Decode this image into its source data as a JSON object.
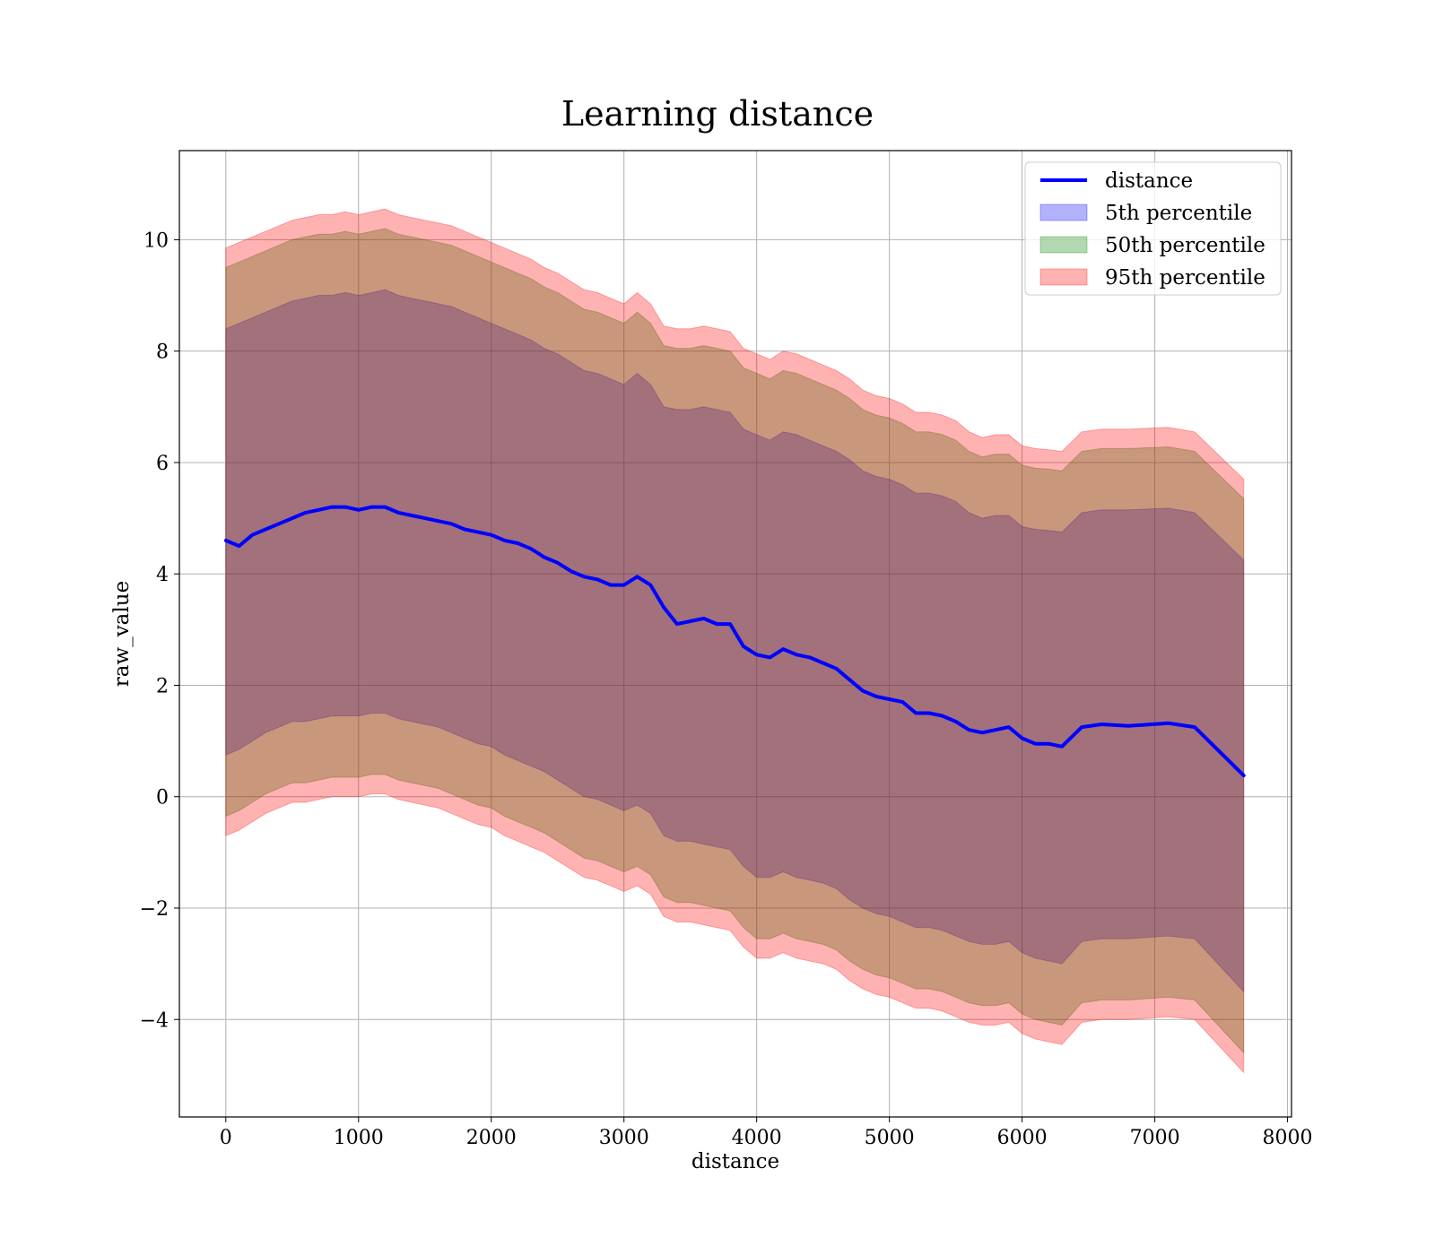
{
  "chart_data": {
    "type": "area",
    "title": "Learning distance",
    "xlabel": "distance",
    "ylabel": "raw_value",
    "xlim": [
      -350,
      8030
    ],
    "ylim": [
      -5.75,
      11.6
    ],
    "xticks": [
      0,
      1000,
      2000,
      3000,
      4000,
      5000,
      6000,
      7000,
      8000
    ],
    "xtick_labels": [
      "0",
      "1000",
      "2000",
      "3000",
      "4000",
      "5000",
      "6000",
      "7000",
      "8000"
    ],
    "yticks": [
      -4,
      -2,
      0,
      2,
      4,
      6,
      8,
      10
    ],
    "ytick_labels": [
      "−4",
      "−2",
      "0",
      "2",
      "4",
      "6",
      "8",
      "10"
    ],
    "grid": true,
    "legend_position": "top-right",
    "x": [
      0,
      100,
      200,
      300,
      400,
      500,
      600,
      700,
      800,
      900,
      1000,
      1100,
      1200,
      1300,
      1400,
      1500,
      1600,
      1700,
      1800,
      1900,
      2000,
      2100,
      2200,
      2300,
      2400,
      2500,
      2600,
      2700,
      2800,
      2900,
      3000,
      3100,
      3200,
      3300,
      3400,
      3500,
      3600,
      3700,
      3800,
      3900,
      4000,
      4100,
      4200,
      4300,
      4400,
      4500,
      4600,
      4700,
      4800,
      4900,
      5000,
      5100,
      5200,
      5300,
      5400,
      5500,
      5600,
      5700,
      5800,
      5900,
      6000,
      6100,
      6200,
      6300,
      6450,
      6600,
      6800,
      7100,
      7300,
      7670
    ],
    "series": [
      {
        "name": "distance",
        "kind": "line",
        "color": "#0000ff",
        "values": [
          4.6,
          4.5,
          4.7,
          4.8,
          4.9,
          5.0,
          5.1,
          5.15,
          5.2,
          5.2,
          5.15,
          5.2,
          5.2,
          5.1,
          5.05,
          5.0,
          4.95,
          4.9,
          4.8,
          4.75,
          4.7,
          4.6,
          4.55,
          4.45,
          4.3,
          4.2,
          4.05,
          3.95,
          3.9,
          3.8,
          3.8,
          3.95,
          3.8,
          3.4,
          3.1,
          3.15,
          3.2,
          3.1,
          3.1,
          2.7,
          2.55,
          2.5,
          2.65,
          2.55,
          2.5,
          2.4,
          2.3,
          2.1,
          1.9,
          1.8,
          1.75,
          1.7,
          1.5,
          1.5,
          1.45,
          1.35,
          1.2,
          1.15,
          1.2,
          1.25,
          1.05,
          0.95,
          0.95,
          0.9,
          1.25,
          1.3,
          1.27,
          1.32,
          1.25,
          0.38
        ]
      },
      {
        "name": "5th percentile",
        "kind": "band",
        "color": "#0000ff",
        "opacity": 0.3,
        "lower": [
          0.75,
          0.85,
          1.0,
          1.15,
          1.25,
          1.35,
          1.35,
          1.4,
          1.45,
          1.45,
          1.45,
          1.5,
          1.5,
          1.4,
          1.35,
          1.3,
          1.25,
          1.15,
          1.05,
          0.95,
          0.9,
          0.75,
          0.65,
          0.55,
          0.45,
          0.3,
          0.15,
          0.0,
          -0.05,
          -0.15,
          -0.25,
          -0.15,
          -0.3,
          -0.7,
          -0.8,
          -0.8,
          -0.85,
          -0.9,
          -0.95,
          -1.25,
          -1.45,
          -1.45,
          -1.35,
          -1.45,
          -1.5,
          -1.55,
          -1.65,
          -1.85,
          -2.0,
          -2.1,
          -2.15,
          -2.25,
          -2.35,
          -2.35,
          -2.4,
          -2.5,
          -2.6,
          -2.65,
          -2.65,
          -2.6,
          -2.8,
          -2.9,
          -2.95,
          -3.0,
          -2.6,
          -2.55,
          -2.55,
          -2.5,
          -2.55,
          -3.5
        ],
        "upper": [
          8.4,
          8.5,
          8.6,
          8.7,
          8.8,
          8.9,
          8.95,
          9.0,
          9.0,
          9.05,
          9.0,
          9.05,
          9.1,
          9.0,
          8.95,
          8.9,
          8.85,
          8.8,
          8.7,
          8.6,
          8.5,
          8.4,
          8.3,
          8.2,
          8.05,
          7.95,
          7.8,
          7.65,
          7.6,
          7.5,
          7.4,
          7.6,
          7.4,
          7.0,
          6.95,
          6.95,
          7.0,
          6.95,
          6.9,
          6.6,
          6.5,
          6.4,
          6.55,
          6.5,
          6.4,
          6.3,
          6.2,
          6.05,
          5.85,
          5.75,
          5.7,
          5.6,
          5.45,
          5.45,
          5.4,
          5.3,
          5.1,
          5.0,
          5.05,
          5.05,
          4.85,
          4.8,
          4.78,
          4.75,
          5.1,
          5.15,
          5.15,
          5.18,
          5.1,
          4.25
        ]
      },
      {
        "name": "50th percentile",
        "kind": "band",
        "color": "#008000",
        "opacity": 0.3,
        "lower": [
          -0.35,
          -0.25,
          -0.1,
          0.05,
          0.15,
          0.25,
          0.25,
          0.3,
          0.35,
          0.35,
          0.35,
          0.4,
          0.4,
          0.3,
          0.25,
          0.2,
          0.15,
          0.05,
          -0.05,
          -0.15,
          -0.2,
          -0.35,
          -0.45,
          -0.55,
          -0.65,
          -0.8,
          -0.95,
          -1.1,
          -1.15,
          -1.25,
          -1.35,
          -1.25,
          -1.4,
          -1.8,
          -1.9,
          -1.9,
          -1.95,
          -2.0,
          -2.05,
          -2.35,
          -2.55,
          -2.55,
          -2.45,
          -2.55,
          -2.6,
          -2.65,
          -2.75,
          -2.95,
          -3.1,
          -3.2,
          -3.25,
          -3.35,
          -3.45,
          -3.45,
          -3.5,
          -3.6,
          -3.7,
          -3.75,
          -3.75,
          -3.7,
          -3.9,
          -4.0,
          -4.05,
          -4.1,
          -3.7,
          -3.65,
          -3.65,
          -3.6,
          -3.65,
          -4.6
        ],
        "upper": [
          9.5,
          9.6,
          9.7,
          9.8,
          9.9,
          10.0,
          10.05,
          10.1,
          10.1,
          10.15,
          10.1,
          10.15,
          10.2,
          10.1,
          10.05,
          10.0,
          9.95,
          9.9,
          9.8,
          9.7,
          9.6,
          9.5,
          9.4,
          9.3,
          9.15,
          9.05,
          8.9,
          8.75,
          8.7,
          8.6,
          8.5,
          8.7,
          8.5,
          8.1,
          8.05,
          8.05,
          8.1,
          8.05,
          8.0,
          7.7,
          7.6,
          7.5,
          7.65,
          7.6,
          7.5,
          7.4,
          7.3,
          7.15,
          6.95,
          6.85,
          6.8,
          6.7,
          6.55,
          6.55,
          6.5,
          6.4,
          6.2,
          6.1,
          6.15,
          6.15,
          5.95,
          5.9,
          5.88,
          5.85,
          6.2,
          6.25,
          6.25,
          6.28,
          6.2,
          5.35
        ]
      },
      {
        "name": "95th percentile",
        "kind": "band",
        "color": "#ff0000",
        "opacity": 0.3,
        "lower": [
          -0.7,
          -0.6,
          -0.45,
          -0.3,
          -0.2,
          -0.1,
          -0.1,
          -0.05,
          0.0,
          0.0,
          0.0,
          0.05,
          0.05,
          -0.05,
          -0.1,
          -0.15,
          -0.2,
          -0.3,
          -0.4,
          -0.5,
          -0.55,
          -0.7,
          -0.8,
          -0.9,
          -1.0,
          -1.15,
          -1.3,
          -1.45,
          -1.5,
          -1.6,
          -1.7,
          -1.6,
          -1.75,
          -2.15,
          -2.25,
          -2.25,
          -2.3,
          -2.35,
          -2.4,
          -2.7,
          -2.9,
          -2.9,
          -2.8,
          -2.9,
          -2.95,
          -3.0,
          -3.1,
          -3.3,
          -3.45,
          -3.55,
          -3.6,
          -3.7,
          -3.8,
          -3.8,
          -3.85,
          -3.95,
          -4.05,
          -4.1,
          -4.1,
          -4.05,
          -4.25,
          -4.35,
          -4.4,
          -4.45,
          -4.05,
          -4.0,
          -4.0,
          -3.95,
          -4.0,
          -4.95
        ],
        "upper": [
          9.85,
          9.95,
          10.05,
          10.15,
          10.25,
          10.35,
          10.4,
          10.45,
          10.45,
          10.5,
          10.45,
          10.5,
          10.55,
          10.45,
          10.4,
          10.35,
          10.3,
          10.25,
          10.15,
          10.05,
          9.95,
          9.85,
          9.75,
          9.65,
          9.5,
          9.4,
          9.25,
          9.1,
          9.05,
          8.95,
          8.85,
          9.05,
          8.85,
          8.45,
          8.4,
          8.4,
          8.45,
          8.4,
          8.35,
          8.05,
          7.95,
          7.85,
          8.0,
          7.95,
          7.85,
          7.75,
          7.65,
          7.5,
          7.3,
          7.2,
          7.15,
          7.05,
          6.9,
          6.9,
          6.85,
          6.75,
          6.55,
          6.45,
          6.5,
          6.5,
          6.3,
          6.25,
          6.23,
          6.2,
          6.55,
          6.6,
          6.6,
          6.63,
          6.55,
          5.7
        ]
      }
    ]
  }
}
